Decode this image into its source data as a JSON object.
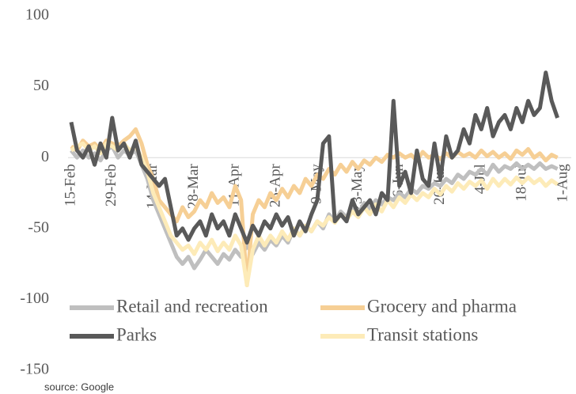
{
  "chart_data": {
    "type": "line",
    "source": "source: Google",
    "categories": [
      "15-Feb",
      null,
      null,
      null,
      null,
      null,
      null,
      "29-Feb",
      null,
      null,
      null,
      null,
      null,
      null,
      "14-Mar",
      null,
      null,
      null,
      null,
      null,
      null,
      "28-Mar",
      null,
      null,
      null,
      null,
      null,
      null,
      "11-Apr",
      null,
      null,
      null,
      null,
      null,
      null,
      "25-Apr",
      null,
      null,
      null,
      null,
      null,
      null,
      "9-May",
      null,
      null,
      null,
      null,
      null,
      null,
      "23-May",
      null,
      null,
      null,
      null,
      null,
      null,
      "6-Jun",
      null,
      null,
      null,
      null,
      null,
      null,
      "20-Jun",
      null,
      null,
      null,
      null,
      null,
      null,
      "4-Jul",
      null,
      null,
      null,
      null,
      null,
      null,
      "18-Jul",
      null,
      null,
      null,
      null,
      null,
      null,
      "1-Aug"
    ],
    "ylim": [
      -150,
      100
    ],
    "yticks": [
      -150,
      -100,
      -50,
      0,
      50,
      100
    ],
    "legend": "bottom",
    "series": [
      {
        "name": "Retail and recreation",
        "color": "#bfbfbf",
        "values": [
          5,
          0,
          5,
          0,
          3,
          -2,
          5,
          8,
          0,
          5,
          2,
          5,
          -5,
          -15,
          -30,
          -40,
          -50,
          -60,
          -70,
          -75,
          -70,
          -78,
          -72,
          -65,
          -70,
          -75,
          -68,
          -72,
          -65,
          -70,
          -62,
          -68,
          -60,
          -65,
          -58,
          -62,
          -55,
          -60,
          -50,
          -55,
          -48,
          -52,
          -45,
          -50,
          -40,
          -45,
          -38,
          -42,
          -35,
          -40,
          -32,
          -36,
          -30,
          -33,
          -28,
          -30,
          -25,
          -28,
          -22,
          -25,
          -20,
          -22,
          -18,
          -20,
          -15,
          -18,
          -12,
          -15,
          -10,
          -12,
          -8,
          -12,
          -5,
          -10,
          -6,
          -8,
          -4,
          -8,
          -5,
          -8,
          -4,
          -8,
          -6,
          -8,
          null
        ]
      },
      {
        "name": "Grocery and pharma",
        "color": "#f6cf95",
        "values": [
          8,
          5,
          12,
          8,
          10,
          5,
          12,
          10,
          8,
          12,
          15,
          20,
          10,
          -5,
          -15,
          -30,
          -35,
          -40,
          -45,
          -35,
          -42,
          -38,
          -30,
          -35,
          -25,
          -32,
          -28,
          -35,
          -20,
          -30,
          -90,
          -40,
          -30,
          -35,
          -25,
          -30,
          -22,
          -28,
          -20,
          -25,
          -15,
          -20,
          -12,
          -15,
          -8,
          -12,
          -5,
          -10,
          -3,
          -8,
          -2,
          -5,
          0,
          -3,
          2,
          0,
          3,
          0,
          2,
          -2,
          4,
          0,
          2,
          -1,
          3,
          0,
          4,
          1,
          3,
          0,
          5,
          1,
          4,
          0,
          3,
          -1,
          5,
          2,
          6,
          0,
          3,
          -2,
          2,
          0,
          null
        ]
      },
      {
        "name": "Parks",
        "color": "#595959",
        "values": [
          25,
          5,
          0,
          8,
          -5,
          10,
          0,
          28,
          5,
          10,
          0,
          12,
          -5,
          -10,
          -15,
          -20,
          -15,
          -35,
          -55,
          -50,
          -58,
          -50,
          -45,
          -55,
          -40,
          -50,
          -45,
          -55,
          -40,
          -50,
          -60,
          -48,
          -55,
          -45,
          -50,
          -40,
          -48,
          -42,
          -55,
          -45,
          -52,
          -40,
          -30,
          10,
          15,
          -45,
          -40,
          -45,
          -30,
          -40,
          -35,
          -30,
          -40,
          -25,
          -30,
          40,
          -20,
          -10,
          -25,
          5,
          -15,
          -20,
          10,
          -15,
          15,
          0,
          5,
          20,
          10,
          30,
          20,
          35,
          15,
          25,
          30,
          20,
          35,
          25,
          40,
          30,
          35,
          60,
          40,
          28,
          null
        ]
      },
      {
        "name": "Transit stations",
        "color": "#fdebb8",
        "values": [
          5,
          8,
          10,
          5,
          8,
          3,
          10,
          8,
          5,
          10,
          5,
          8,
          0,
          -10,
          -25,
          -35,
          -45,
          -55,
          -60,
          -65,
          -62,
          -68,
          -60,
          -65,
          -58,
          -66,
          -60,
          -65,
          -55,
          -62,
          -90,
          -65,
          -55,
          -62,
          -55,
          -60,
          -52,
          -58,
          -50,
          -55,
          -48,
          -52,
          -45,
          -48,
          -42,
          -46,
          -40,
          -44,
          -38,
          -42,
          -35,
          -40,
          -33,
          -38,
          -30,
          -35,
          -28,
          -32,
          -26,
          -30,
          -25,
          -28,
          -22,
          -26,
          -20,
          -24,
          -18,
          -22,
          -17,
          -20,
          -16,
          -22,
          -15,
          -20,
          -15,
          -19,
          -14,
          -18,
          -14,
          -18,
          -15,
          -20,
          -16,
          -19,
          null
        ]
      }
    ]
  }
}
